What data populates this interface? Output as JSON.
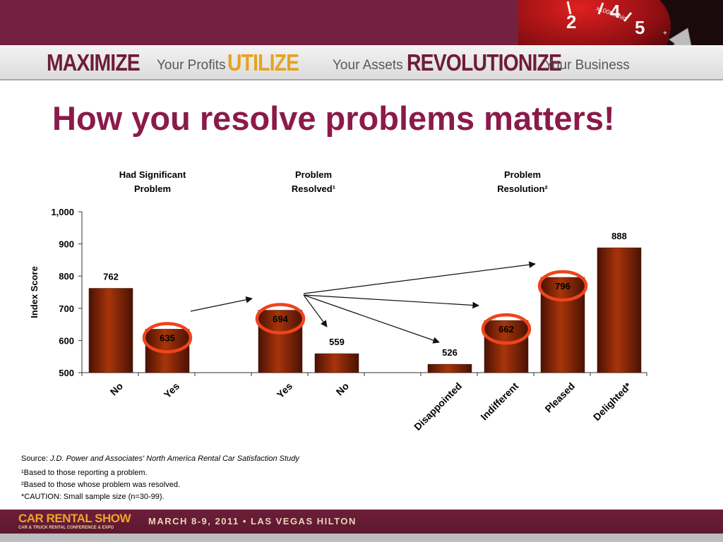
{
  "header": {
    "tagline": [
      {
        "bold": "MAXIMIZE",
        "small": "Your Profits"
      },
      {
        "bold": "UTILIZE",
        "small": "Your Assets"
      },
      {
        "bold": "REVOLUTIONIZE",
        "small": "Your Business"
      }
    ],
    "gauge_text": "x1000r/min",
    "colors": {
      "brand": "#74203f",
      "accent": "#e6a320",
      "title": "#8b1a4a",
      "bar": "#9a2f08",
      "circle": "#f0431c"
    }
  },
  "title": "How you resolve problems matters!",
  "chart_data": {
    "type": "bar",
    "groups": [
      {
        "label_line1": "Had Significant",
        "label_line2": "Problem"
      },
      {
        "label_line1": "Problem",
        "label_line2": "Resolved¹"
      },
      {
        "label_line1": "Problem",
        "label_line2": "Resolution²"
      }
    ],
    "categories": [
      "No",
      "Yes",
      "",
      "Yes",
      "No",
      "",
      "Disappointed",
      "Indifferent",
      "Pleased",
      "Delighted*"
    ],
    "values": [
      762,
      635,
      null,
      694,
      559,
      null,
      526,
      662,
      796,
      888
    ],
    "value_labels": [
      "762",
      "635",
      "",
      "694",
      "559",
      "",
      "526",
      "662",
      "796",
      "888"
    ],
    "circled": [
      1,
      3,
      7,
      8
    ],
    "arrows": [
      [
        1,
        3
      ],
      [
        3,
        4
      ],
      [
        3,
        6
      ],
      [
        3,
        7
      ],
      [
        3,
        8
      ]
    ],
    "ylabel": "Index Score",
    "ylim": [
      500,
      1000
    ],
    "yticks": [
      "500",
      "600",
      "700",
      "800",
      "900",
      "1,000"
    ],
    "grid": false
  },
  "source": {
    "prefix": "Source:",
    "text": "J.D. Power and Associates' North America Rental Car Satisfaction Study"
  },
  "footnotes": [
    "¹Based to those reporting a problem.",
    "²Based to those whose problem was resolved.",
    "*CAUTION: Small sample size (n=30-99)."
  ],
  "footer": {
    "brand": "CAR RENTAL SHOW",
    "brand_sub": "CAR & TRUCK RENTAL CONFERENCE & EXPO",
    "event": "MARCH 8-9, 2011 • LAS VEGAS HILTON"
  }
}
